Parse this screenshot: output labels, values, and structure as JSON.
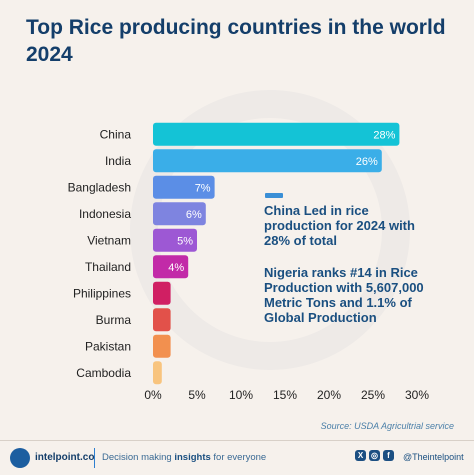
{
  "title": "Top Rice producing countries in the world 2024",
  "notes": [
    "China Led in rice production for 2024 with 28% of total",
    "Nigeria ranks #14 in Rice Production with 5,607,000 Metric Tons and 1.1% of Global Production"
  ],
  "source": "Source: USDA Agricultrial service",
  "footer": {
    "brand": "intelpoint.co",
    "tagline_pre": "Decision making ",
    "tagline_bold": "insights",
    "tagline_post": " for everyone",
    "handle": "@Theintelpoint"
  },
  "chart_data": {
    "type": "bar",
    "orientation": "horizontal",
    "categories": [
      "China",
      "India",
      "Bangladesh",
      "Indonesia",
      "Vietnam",
      "Thailand",
      "Philippines",
      "Burma",
      "Pakistan",
      "Cambodia"
    ],
    "values": [
      28,
      26,
      7,
      6,
      5,
      4,
      2,
      2,
      2,
      1
    ],
    "value_labels": [
      "28%",
      "26%",
      "7%",
      "6%",
      "5%",
      "4%",
      "",
      "",
      "",
      ""
    ],
    "colors": [
      "#14c3d6",
      "#3aaee8",
      "#5b8ee6",
      "#7e84e0",
      "#9d58d4",
      "#c22aa8",
      "#d01f63",
      "#e2514a",
      "#f2904f",
      "#f8c47e"
    ],
    "xlim": [
      0,
      30
    ],
    "xticks": [
      "0%",
      "5%",
      "10%",
      "15%",
      "20%",
      "25%",
      "30%"
    ],
    "xtick_values": [
      0,
      5,
      10,
      15,
      20,
      25,
      30
    ],
    "grid": false
  }
}
